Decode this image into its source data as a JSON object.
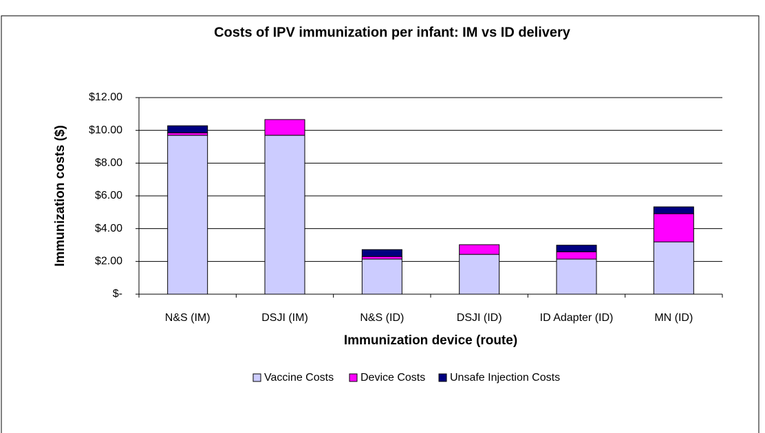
{
  "chart_data": {
    "type": "stacked_bar",
    "title": "Costs of IPV immunization per infant: IM vs ID delivery",
    "x_label": "Immunization device (route)",
    "y_label": "Immunization costs ($)",
    "categories": [
      "N&S (IM)",
      "DSJI (IM)",
      "N&S (ID)",
      "DSJI (ID)",
      "ID Adapter (ID)",
      "MN (ID)"
    ],
    "series": [
      {
        "name": "Vaccine Costs",
        "color": "#ccccff",
        "values": [
          9.7,
          9.7,
          2.14,
          2.43,
          2.14,
          3.19
        ]
      },
      {
        "name": "Device Costs",
        "color": "#ff00ff",
        "values": [
          0.15,
          0.96,
          0.16,
          0.59,
          0.45,
          1.72
        ]
      },
      {
        "name": "Unsafe Injection Costs",
        "color": "#000080",
        "values": [
          0.43,
          0,
          0.42,
          0,
          0.4,
          0.42
        ]
      }
    ],
    "ylim": [
      0,
      12
    ],
    "yticks": [
      {
        "value": 0,
        "label": "$-"
      },
      {
        "value": 2,
        "label": "$2.00"
      },
      {
        "value": 4,
        "label": "$4.00"
      },
      {
        "value": 6,
        "label": "$6.00"
      },
      {
        "value": 8,
        "label": "$8.00"
      },
      {
        "value": 10,
        "label": "$10.00"
      },
      {
        "value": 12,
        "label": "$12.00"
      }
    ],
    "grid": true,
    "legend": "bottom"
  }
}
